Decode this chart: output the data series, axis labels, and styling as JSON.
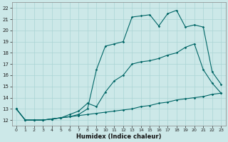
{
  "bg_color": "#cce8e8",
  "grid_color": "#aad4d4",
  "line_color": "#006666",
  "xlabel": "Humidex (Indice chaleur)",
  "ylim": [
    11.5,
    22.5
  ],
  "xlim": [
    -0.5,
    23.5
  ],
  "yticks": [
    12,
    13,
    14,
    15,
    16,
    17,
    18,
    19,
    20,
    21,
    22
  ],
  "xticks": [
    0,
    1,
    2,
    3,
    4,
    5,
    6,
    7,
    8,
    9,
    10,
    11,
    12,
    13,
    14,
    15,
    16,
    17,
    18,
    19,
    20,
    21,
    22,
    23
  ],
  "series1_x": [
    0,
    1,
    2,
    3,
    4,
    5,
    6,
    7,
    8,
    9,
    10,
    11,
    12,
    13,
    14,
    15,
    16,
    17,
    18,
    19,
    20,
    21,
    22,
    23
  ],
  "series1_y": [
    13.0,
    12.0,
    12.0,
    12.0,
    12.1,
    12.2,
    12.3,
    12.4,
    12.5,
    12.6,
    12.7,
    12.8,
    12.9,
    13.0,
    13.2,
    13.3,
    13.5,
    13.6,
    13.8,
    13.9,
    14.0,
    14.1,
    14.3,
    14.4
  ],
  "series2_x": [
    0,
    1,
    2,
    3,
    4,
    5,
    6,
    7,
    8,
    9,
    10,
    11,
    12,
    13,
    14,
    15,
    16,
    17,
    18,
    19,
    20,
    21,
    22,
    23
  ],
  "series2_y": [
    13.0,
    12.0,
    12.0,
    12.0,
    12.1,
    12.2,
    12.3,
    12.5,
    13.0,
    16.5,
    18.6,
    18.8,
    19.0,
    21.2,
    21.3,
    21.4,
    20.4,
    21.5,
    21.8,
    20.3,
    20.5,
    20.3,
    16.3,
    15.2
  ],
  "series3_x": [
    0,
    1,
    2,
    3,
    4,
    5,
    6,
    7,
    8,
    9,
    10,
    11,
    12,
    13,
    14,
    15,
    16,
    17,
    18,
    19,
    20,
    21,
    22,
    23
  ],
  "series3_y": [
    13.0,
    12.0,
    12.0,
    12.0,
    12.1,
    12.2,
    12.5,
    12.8,
    13.5,
    13.2,
    14.5,
    15.5,
    16.0,
    17.0,
    17.2,
    17.3,
    17.5,
    17.8,
    18.0,
    18.5,
    18.8,
    16.5,
    15.3,
    14.4
  ]
}
